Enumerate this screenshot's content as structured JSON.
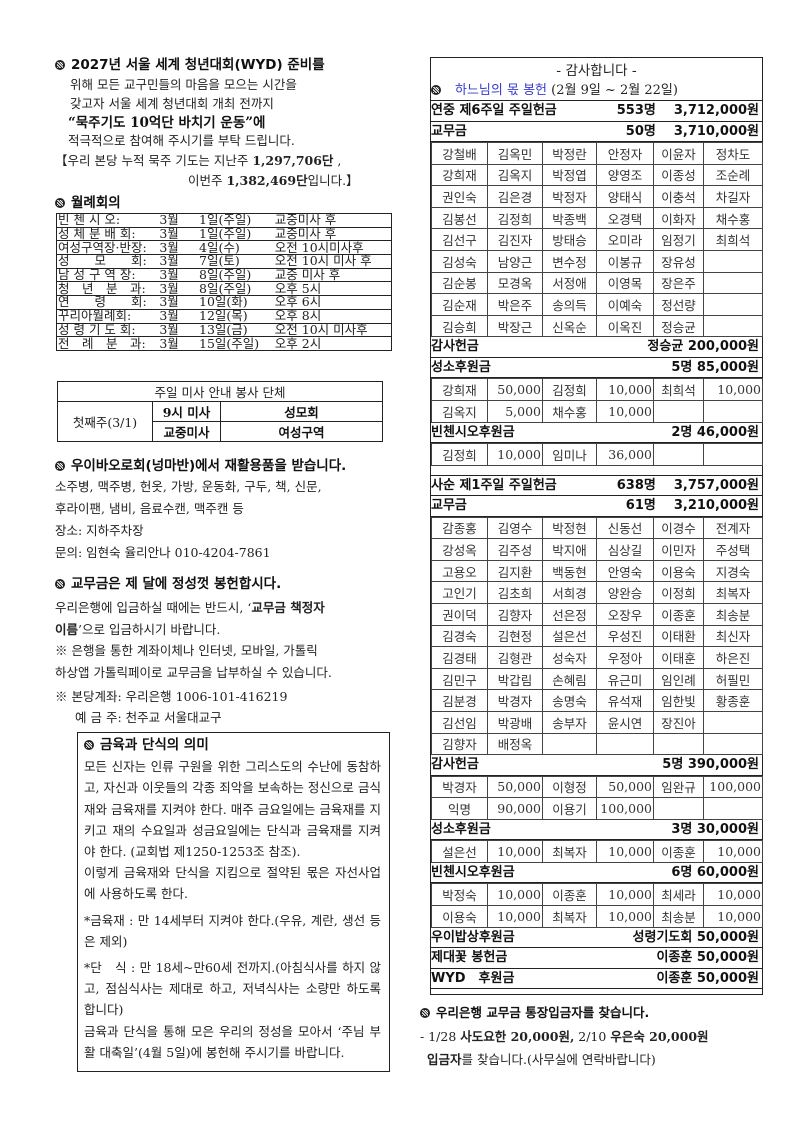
{
  "wyd": {
    "title": "2027년 서울 세계 청년대회(WYD) 준비를",
    "lines": [
      "위해 모든 교구민들의 마음을 모으는 시간을",
      "갖고자 서울 세계 청년대회 개최 전까지"
    ],
    "bold_line": "“묵주기도 10억단 바치기 운동”에",
    "line4": "적극적으로 참여해 주시기를 부탁 드립니다.",
    "tally1": "【우리 본당 누적 묵주 기도는 지난주 ",
    "tally1_num": "1,297,706단",
    "tally1_end": " ,",
    "tally2": "이번주 ",
    "tally2_num": "1,382,469단",
    "tally2_end": "입니다.】"
  },
  "meetings": {
    "title": "월례회의",
    "rows": [
      [
        "빈 첸 시 오:",
        "3월",
        "1일(주일)",
        "교중미사 후"
      ],
      [
        "성 체 분 배 회:",
        "3월",
        "1일(주일)",
        "교중미사 후"
      ],
      [
        "여성구역장·반장:",
        "3월",
        "4일(수)",
        "오전 10시미사후"
      ],
      [
        "성　　모　　회:",
        "3월",
        "7일(토)",
        "오전 10시 미사 후"
      ],
      [
        "남 성 구 역 장:",
        "3월",
        "8일(주일)",
        "교중 미사 후"
      ],
      [
        "청　년　분　과:",
        "3월",
        "8일(주일)",
        "오후 5시"
      ],
      [
        "연　　령　　회:",
        "3월",
        "10일(화)",
        "오후 6시"
      ],
      [
        "꾸리아월례회:",
        "3월",
        "12일(목)",
        "오후 8시"
      ],
      [
        "성 령 기 도 회:",
        "3월",
        "13일(금)",
        "오전 10시 미사후"
      ],
      [
        "전　례　분　과:",
        "3월",
        "15일(주일)",
        "오후 2시"
      ]
    ]
  },
  "service": {
    "title": "주일 미사 안내 봉사 단체",
    "week": "첫째주(3/1)",
    "rows": [
      [
        "9시 미사",
        "성모회"
      ],
      [
        "교중미사",
        "여성구역"
      ]
    ]
  },
  "recycle": {
    "title": "우이바오로회(넝마반)에서 재활용품을 받습니다.",
    "lines": [
      "소주병, 맥주병, 헌옷, 가방, 운동화, 구두, 책, 신문,",
      "후라이팬, 냄비, 음료수캔, 맥주캔 등",
      "장소: 지하주차장",
      "문의: 임현숙 율리안나 010-4204-7861"
    ]
  },
  "dues": {
    "title": "교무금은 제 달에 정성껏 봉헌합시다.",
    "l1a": "우리은행에 입금하실 때에는 반드시, ‘",
    "l1b": "교무금 책정자",
    "l2a": "이름",
    "l2b": "’으로 입금하시기 바랍니다.",
    "l3": "※ 은행을 통한 계좌이체나 인터넷, 모바일, 가톨릭",
    "l4": "하상앱 가톨릭페이로 교무금을 납부하실 수 있습니다.",
    "l5": "※ 본당계좌: 우리은행 1006-101-416219",
    "l6": "예 금 주: 천주교 서울대교구"
  },
  "fasting": {
    "title": "금육과 단식의 의미",
    "p1": "모든 신자는 인류 구원을 위한 그리스도의 수난에 동참하고, 자신과 이웃들의 각종 죄악을 보속하는 정신으로 금식재와 금육재를 지켜야 한다. 매주 금요일에는 금육재를 지키고 재의 수요일과 성금요일에는 단식과 금육재를 지켜야 한다. (교회법 제1250-1253조 참조).",
    "p2": "이렇게 금육재와 단식을 지킴으로 절약된 몫은 자선사업에 사용하도록 한다.",
    "p3": "*금육재 : 만 14세부터 지켜야 한다.(우유, 계란, 생선 등은 제외)",
    "p4": "*단　식 : 만 18세~만60세 전까지.(아침식사를 하지 않고, 점심식사는 제대로 하고, 저녁식사는 소량만 하도록 합니다)",
    "p5": " 금육과 단식을 통해 모은 우리의 정성을 모아서 ‘주님 부활 대축일’(4월 5일)에 봉헌해 주시기를 바랍니다."
  },
  "thanks": {
    "title": "- 감사합니다 -",
    "sub_blue": "하느님의 몫 봉헌",
    "sub_rest": " (2월 9일 ~ 2월 22일)",
    "blue": "#3a3ad0",
    "w1": {
      "sunday": [
        "연중 제6주일 주일헌금",
        "553명",
        "3,712,000원"
      ],
      "dues": [
        "교무금",
        "50명",
        "3,710,000원"
      ],
      "names": [
        [
          "강철배",
          "김옥민",
          "박정란",
          "안정자",
          "이윤자",
          "정차도"
        ],
        [
          "강희재",
          "김옥지",
          "박정엽",
          "양영조",
          "이종성",
          "조순례"
        ],
        [
          "권인숙",
          "김은경",
          "박정자",
          "양태식",
          "이충석",
          "차길자"
        ],
        [
          "김봉선",
          "김정희",
          "박종백",
          "오경택",
          "이화자",
          "채수홍"
        ],
        [
          "김선구",
          "김진자",
          "방태승",
          "오미라",
          "임정기",
          "최희석"
        ],
        [
          "김성숙",
          "남양근",
          "변수정",
          "이봉규",
          "장유성",
          ""
        ],
        [
          "김순봉",
          "모경옥",
          "서정애",
          "이영목",
          "장은주",
          ""
        ],
        [
          "김순재",
          "박은주",
          "송의득",
          "이예숙",
          "정선량",
          ""
        ],
        [
          "김승희",
          "박장근",
          "신옥순",
          "이옥진",
          "정승균",
          ""
        ]
      ],
      "thanks_gift": [
        "감사헌금",
        "정승균 200,000원"
      ],
      "vocation": [
        "성소후원금",
        "5명 85,000원"
      ],
      "vocation_rows": [
        [
          "강희재",
          "50,000",
          "김정희",
          "10,000",
          "최희석",
          "10,000"
        ],
        [
          "김옥지",
          "5,000",
          "채수홍",
          "10,000",
          "",
          ""
        ]
      ],
      "vincent": [
        "빈첸시오후원금",
        "2명 46,000원"
      ],
      "vincent_rows": [
        [
          "김정희",
          "10,000",
          "임미나",
          "36,000",
          "",
          ""
        ]
      ]
    },
    "w2": {
      "sunday": [
        "사순 제1주일 주일헌금",
        "638명",
        "3,757,000원"
      ],
      "dues": [
        "교무금",
        "61명",
        "3,210,000원"
      ],
      "names": [
        [
          "감종홍",
          "김영수",
          "박정현",
          "신동선",
          "이경수",
          "전계자"
        ],
        [
          "강성옥",
          "김주성",
          "박지애",
          "심상길",
          "이민자",
          "주성택"
        ],
        [
          "고용오",
          "김지환",
          "백동현",
          "안영숙",
          "이용숙",
          "지경숙"
        ],
        [
          "고인기",
          "김초희",
          "서희경",
          "양완승",
          "이정희",
          "최복자"
        ],
        [
          "권이덕",
          "김향자",
          "선은정",
          "오장우",
          "이종훈",
          "최송분"
        ],
        [
          "김경숙",
          "김현정",
          "설은선",
          "우성진",
          "이태환",
          "최신자"
        ],
        [
          "김경태",
          "김형관",
          "성숙자",
          "우정아",
          "이태훈",
          "하은진"
        ],
        [
          "김민구",
          "박갑림",
          "손혜림",
          "유근미",
          "임인례",
          "허필민"
        ],
        [
          "김분경",
          "박경자",
          "송명숙",
          "유석재",
          "임한빛",
          "황종훈"
        ],
        [
          "김선임",
          "박광배",
          "송부자",
          "윤시연",
          "장진아",
          ""
        ],
        [
          "김향자",
          "배정옥",
          "",
          "",
          "",
          ""
        ]
      ],
      "thanks_gift": [
        "감사헌금",
        "5명 390,000원"
      ],
      "thanks_rows": [
        [
          "박경자",
          "50,000",
          "이형정",
          "50,000",
          "임완규",
          "100,000"
        ],
        [
          "익명",
          "90,000",
          "이용기",
          "100,000",
          "",
          ""
        ]
      ],
      "vocation": [
        "성소후원금",
        "3명 30,000원"
      ],
      "vocation_rows": [
        [
          "설은선",
          "10,000",
          "최복자",
          "10,000",
          "이종훈",
          "10,000"
        ]
      ],
      "vincent": [
        "빈첸시오후원금",
        "6명 60,000원"
      ],
      "vincent_rows": [
        [
          "박정숙",
          "10,000",
          "이종훈",
          "10,000",
          "최세라",
          "10,000"
        ],
        [
          "이용숙",
          "10,000",
          "최복자",
          "10,000",
          "최송분",
          "10,000"
        ]
      ],
      "extra": [
        [
          "우이밥상후원금",
          "성령기도회 50,000원"
        ],
        [
          "제대꽃 봉헌금",
          "이종훈 50,000원"
        ],
        [
          "WYD　후원금",
          "이종훈 50,000원"
        ]
      ]
    }
  },
  "bank": {
    "title": "우리은행 교무금 통장입금자를 찾습니다.",
    "l1a": "- 1/28 ",
    "l1b": "사도요한 20,000원,",
    "l1c": " 2/10 ",
    "l1d": "우은숙 20,000원",
    "l2a": "입금자",
    "l2b": "를 찾습니다.(사무실에 연락바랍니다)"
  }
}
